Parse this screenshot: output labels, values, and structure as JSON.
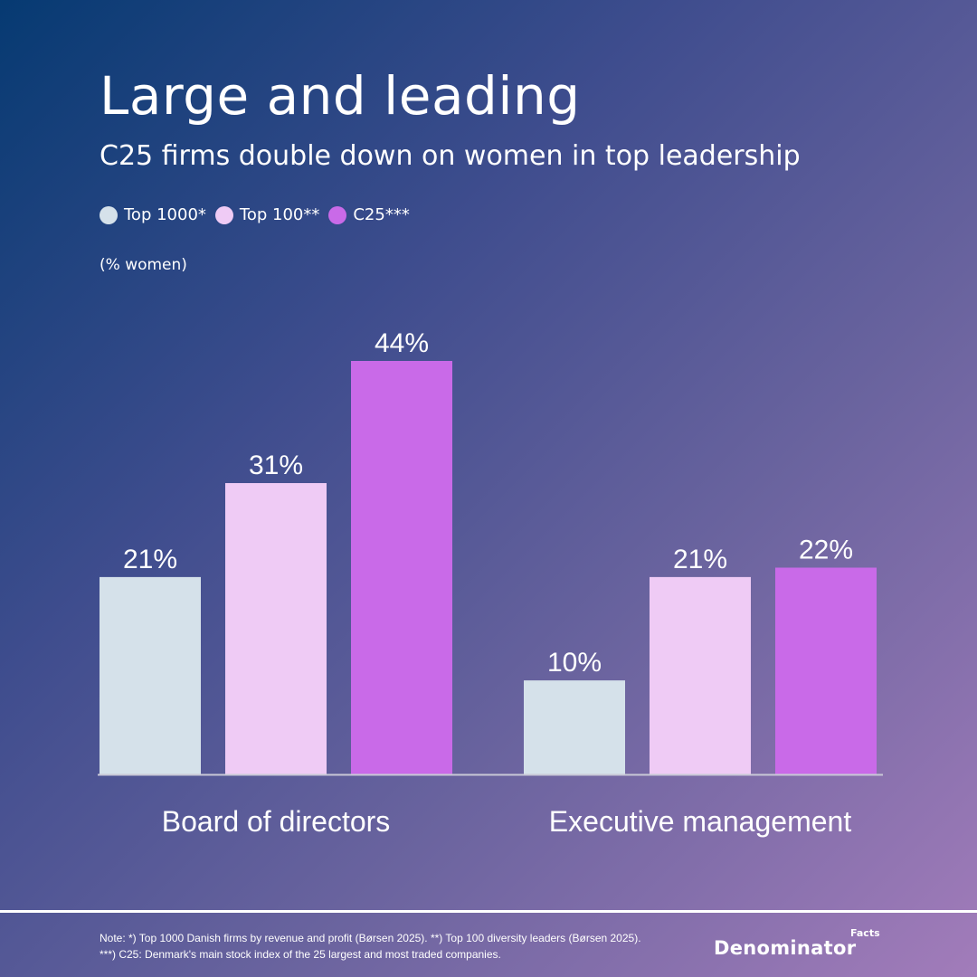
{
  "title": "Large and leading",
  "subtitle": "C25 firms double down on women in top leadership",
  "unit_label": "(% women)",
  "colors": {
    "top1000": "#d5e1ea",
    "top100": "#efcbf5",
    "c25": "#c96ae8",
    "baseline": "#c8c8d6"
  },
  "chart_data": {
    "type": "bar",
    "title": "Large and leading",
    "subtitle": "C25 firms double down on women in top leadership",
    "ylabel": "(% women)",
    "xlabel": "",
    "ylim": [
      0,
      44
    ],
    "grid": false,
    "legend_position": "top-left",
    "categories": [
      "Board of directors",
      "Executive management"
    ],
    "series": [
      {
        "name": "Top 1000*",
        "color": "#d5e1ea",
        "values": [
          21,
          10
        ],
        "labels": [
          "21%",
          "10%"
        ]
      },
      {
        "name": "Top 100**",
        "color": "#efcbf5",
        "values": [
          31,
          21
        ],
        "labels": [
          "31%",
          "21%"
        ]
      },
      {
        "name": "C25***",
        "color": "#c96ae8",
        "values": [
          44,
          22
        ],
        "labels": [
          "44%",
          "22%"
        ]
      }
    ]
  },
  "footer": {
    "note_line1": "Note: *) Top 1000 Danish firms by revenue and profit (Børsen 2025). **) Top 100 diversity leaders (Børsen 2025).",
    "note_line2": "***) C25: Denmark's main stock index of the 25 largest and most traded companies.",
    "brand": "Denominator",
    "brand_sup": "Facts"
  }
}
